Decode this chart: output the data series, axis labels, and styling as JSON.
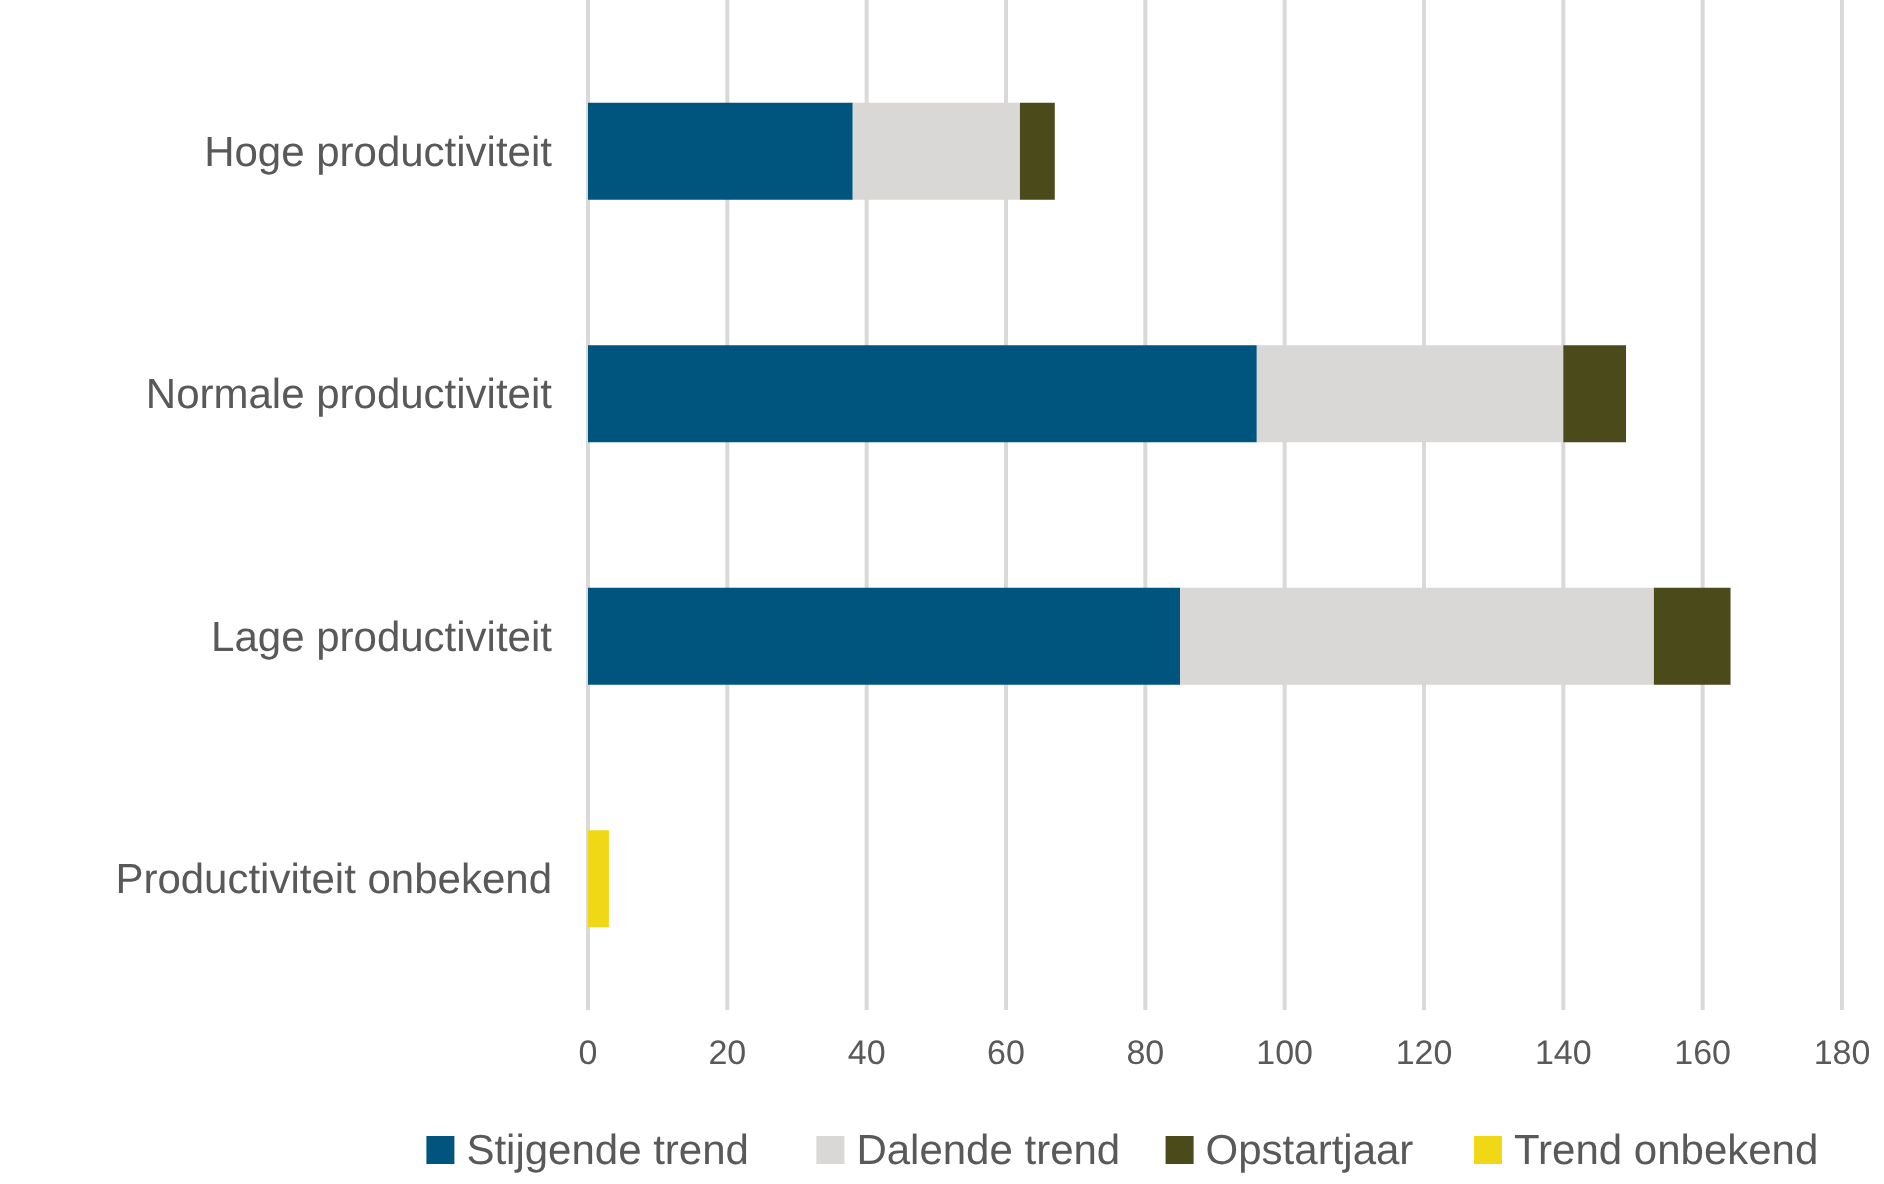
{
  "chart_data": {
    "type": "bar",
    "orientation": "horizontal",
    "stacked": true,
    "categories": [
      "Hoge productiviteit",
      "Normale productiviteit",
      "Lage productiviteit",
      "Productiviteit onbekend"
    ],
    "series": [
      {
        "name": "Stijgende trend",
        "color": "#00557f",
        "values": [
          38,
          96,
          85,
          null
        ]
      },
      {
        "name": "Dalende trend",
        "color": "#d9d8d6",
        "values": [
          24,
          44,
          68,
          null
        ]
      },
      {
        "name": "Opstartjaar",
        "color": "#4b4a1a",
        "values": [
          5,
          9,
          11,
          null
        ]
      },
      {
        "name": "Trend onbekend",
        "color": "#f0d817",
        "values": [
          null,
          null,
          null,
          3
        ]
      }
    ],
    "xlim": [
      0,
      180
    ],
    "xticks": [
      0,
      20,
      40,
      60,
      80,
      100,
      120,
      140,
      160,
      180
    ],
    "grid": "x",
    "legend": "bottom"
  }
}
